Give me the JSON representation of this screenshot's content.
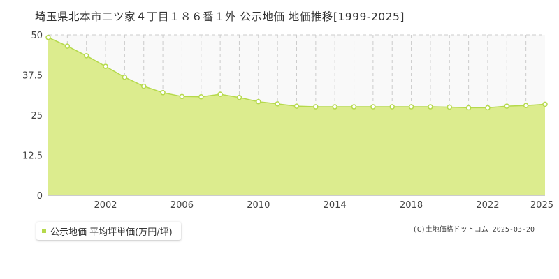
{
  "title": "埼玉県北本市二ツ家４丁目１８６番１外 公示地価 地価推移[1999-2025]",
  "legend_label": "公示地価 平均坪単価(万円/坪)",
  "credit": "(C)土地価格ドットコム 2025-03-20",
  "colors": {
    "fill": "#dcec8e",
    "line": "#b5d94b",
    "marker": "#b5d94b",
    "grid": "#cccccc",
    "plot_bg": "#f9f9f9"
  },
  "chart_data": {
    "type": "area",
    "title": "",
    "xlabel": "",
    "ylabel": "",
    "xlim": [
      1999,
      2025
    ],
    "ylim": [
      0,
      50
    ],
    "yticks": [
      "0",
      "12.5",
      "25",
      "37.5",
      "50"
    ],
    "xticks": [
      "2002",
      "2006",
      "2010",
      "2014",
      "2018",
      "2022",
      "2025"
    ],
    "grid": true,
    "legend_position": "bottom-left",
    "series": [
      {
        "name": "公示地価 平均坪単価(万円/坪)",
        "x": [
          1999,
          2000,
          2001,
          2002,
          2003,
          2004,
          2005,
          2006,
          2007,
          2008,
          2009,
          2010,
          2011,
          2012,
          2013,
          2014,
          2015,
          2016,
          2017,
          2018,
          2019,
          2020,
          2021,
          2022,
          2023,
          2024,
          2025
        ],
        "values": [
          49.2,
          46.5,
          43.5,
          40.2,
          36.8,
          34.0,
          32.0,
          30.8,
          30.7,
          31.5,
          30.5,
          29.2,
          28.5,
          27.8,
          27.6,
          27.6,
          27.6,
          27.6,
          27.6,
          27.6,
          27.6,
          27.5,
          27.3,
          27.3,
          27.8,
          28.0,
          28.4
        ]
      }
    ]
  }
}
